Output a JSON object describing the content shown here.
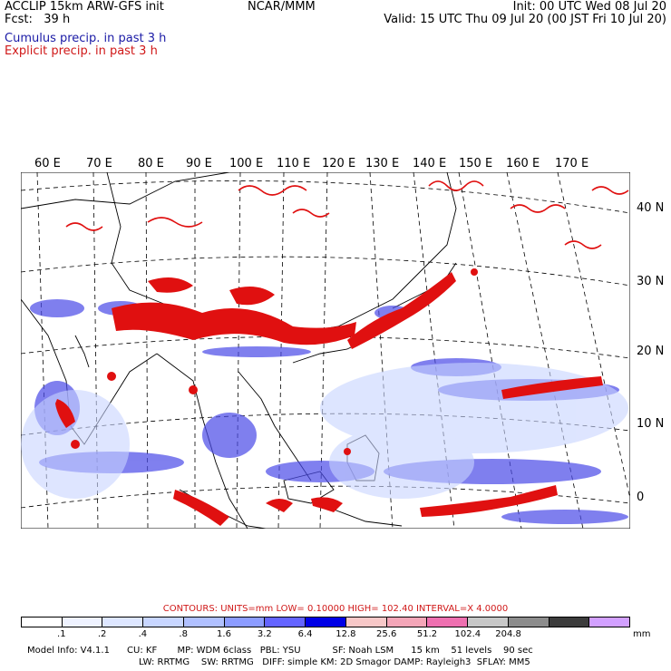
{
  "header": {
    "left_line1": "ACCLIP 15km ARW-GFS init",
    "left_line2": "Fcst:   39 h",
    "center": "NCAR/MMM",
    "right_line1": "Init: 00 UTC Wed 08 Jul 20",
    "right_line2": "Valid: 15 UTC Thu 09 Jul 20 (00 JST Fri 10 Jul 20)"
  },
  "legend": {
    "cumulus": "Cumulus precip. in past 3 h",
    "explicit": "Explicit precip. in past 3 h",
    "cumulus_color": "#3a3ae0",
    "explicit_color": "#e01010"
  },
  "map": {
    "lon_labels": [
      "60 E",
      "70 E",
      "80 E",
      "90 E",
      "100 E",
      "110 E",
      "120 E",
      "130 E",
      "140 E",
      "150 E",
      "160 E",
      "170 E"
    ],
    "lat_labels": [
      "40 N",
      "30 N",
      "20 N",
      "10 N",
      "0"
    ]
  },
  "colorbar": {
    "contours_text": "CONTOURS:  UNITS=mm  LOW= 0.10000        HIGH=  102.40       INTERVAL=X  4.0000",
    "colors": [
      "#ffffff",
      "#eef2ff",
      "#dde6ff",
      "#c8d6ff",
      "#b0c0ff",
      "#8c9cff",
      "#6464ff",
      "#0000e6",
      "#f7c8c8",
      "#f4a6b8",
      "#ee70b0",
      "#c8c8c8",
      "#8c8c8c",
      "#3c3c3c",
      "#d2a0ff"
    ],
    "labels": [
      ".1",
      ".2",
      ".4",
      ".8",
      "1.6",
      "3.2",
      "6.4",
      "12.8",
      "25.6",
      "51.2",
      "102.4",
      "204.8"
    ],
    "units": "mm"
  },
  "footer": {
    "line1": "Model Info: V4.1.1      CU: KF       MP: WDM 6class   PBL: YSU           SF: Noah LSM      15 km    51 levels    90 sec",
    "line2": "LW: RRTMG    SW: RRTMG   DIFF: simple KM: 2D Smagor DAMP: Rayleigh3  SFLAY: MM5"
  }
}
